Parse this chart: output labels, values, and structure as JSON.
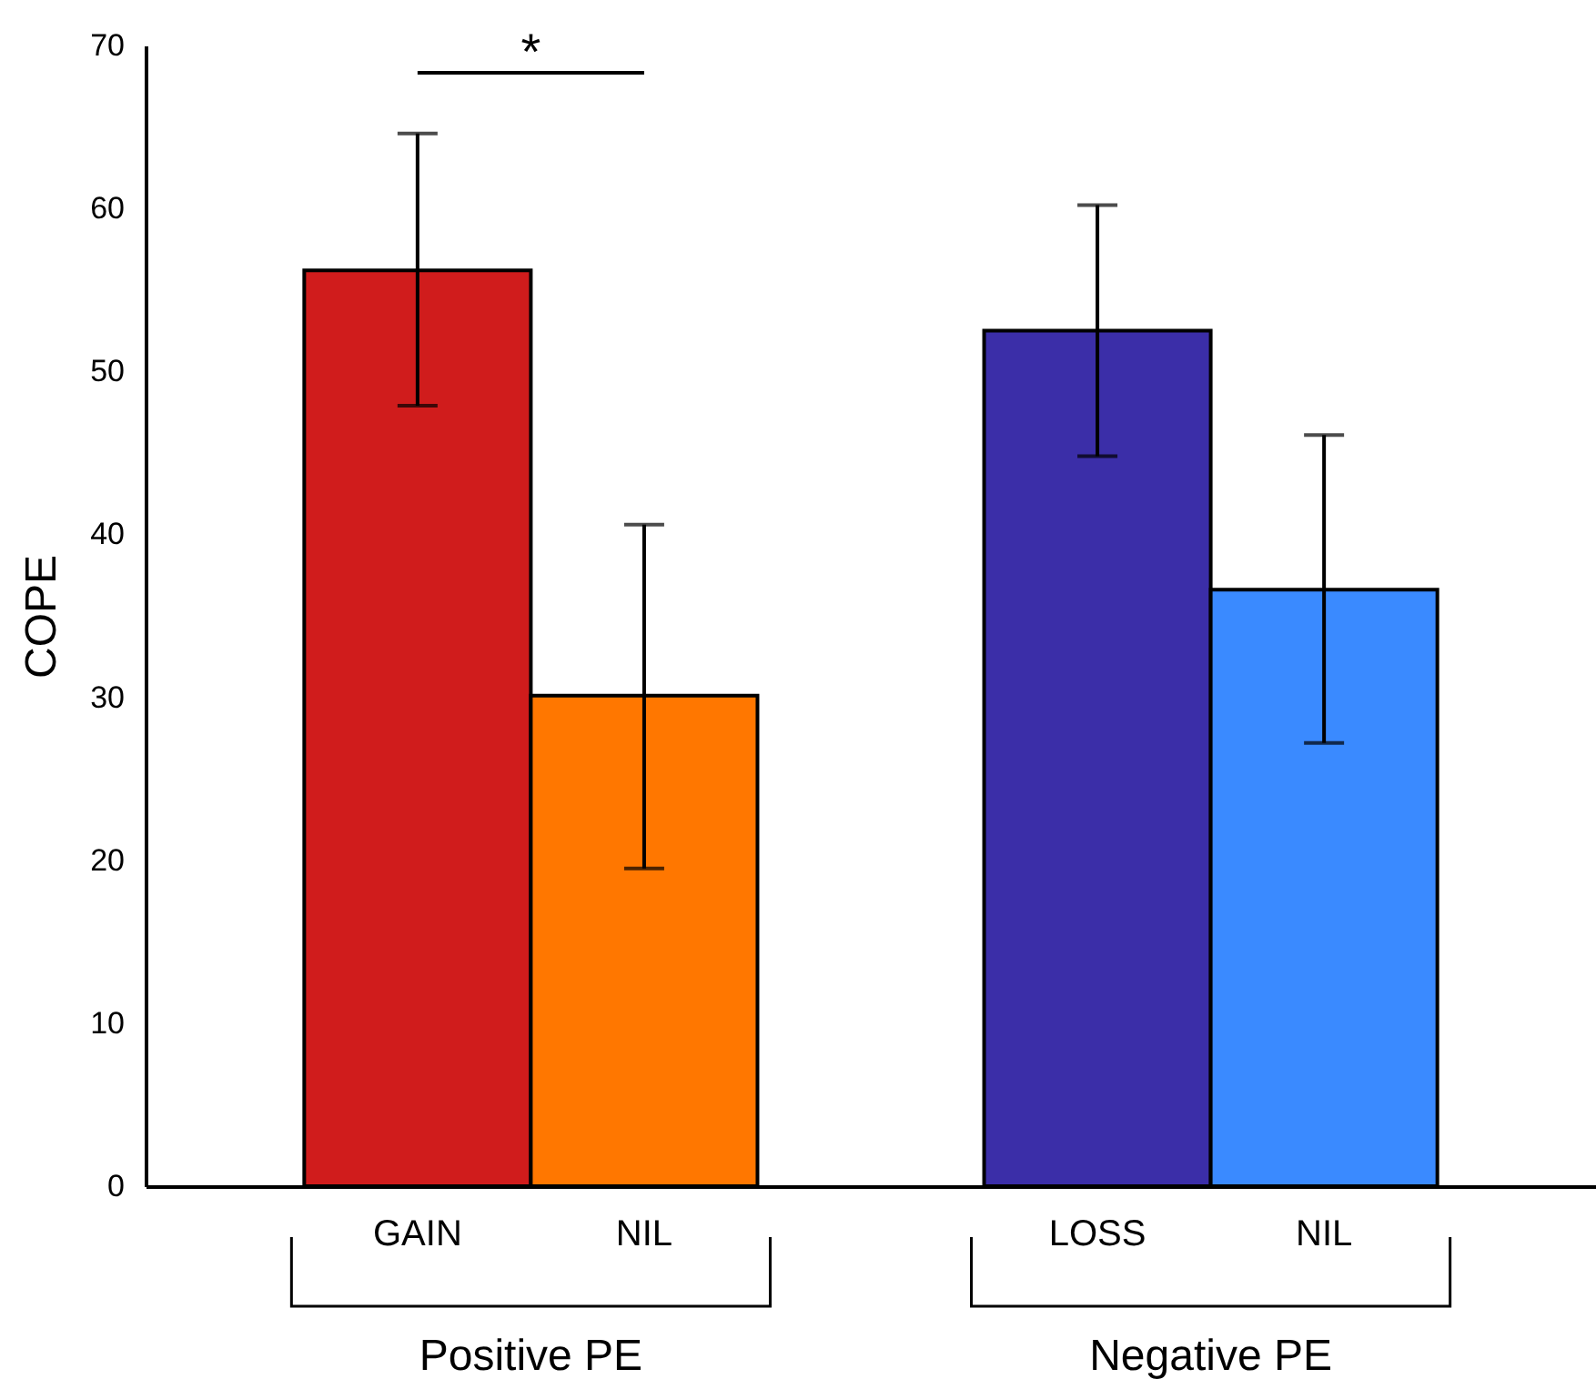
{
  "chart_data": {
    "type": "bar",
    "ylabel": "COPE",
    "categories": [
      "GAIN",
      "NIL",
      null,
      "LOSS",
      "NIL"
    ],
    "colors": [
      "#d01c1c",
      "#ff7700",
      "#000000",
      "#3b2ea8",
      "#3a8aff"
    ],
    "values": [
      56.2,
      30.1,
      null,
      52.5,
      36.6
    ],
    "errors": [
      [
        47.9,
        64.6
      ],
      [
        19.5,
        40.6
      ],
      null,
      [
        44.8,
        60.2
      ],
      [
        27.2,
        46.1
      ]
    ],
    "ylim": [
      0,
      70
    ],
    "yticks": [
      0,
      10,
      20,
      30,
      40,
      50,
      60,
      70
    ],
    "annotations": [
      "*",
      "Positive PE",
      "Negative PE"
    ]
  }
}
